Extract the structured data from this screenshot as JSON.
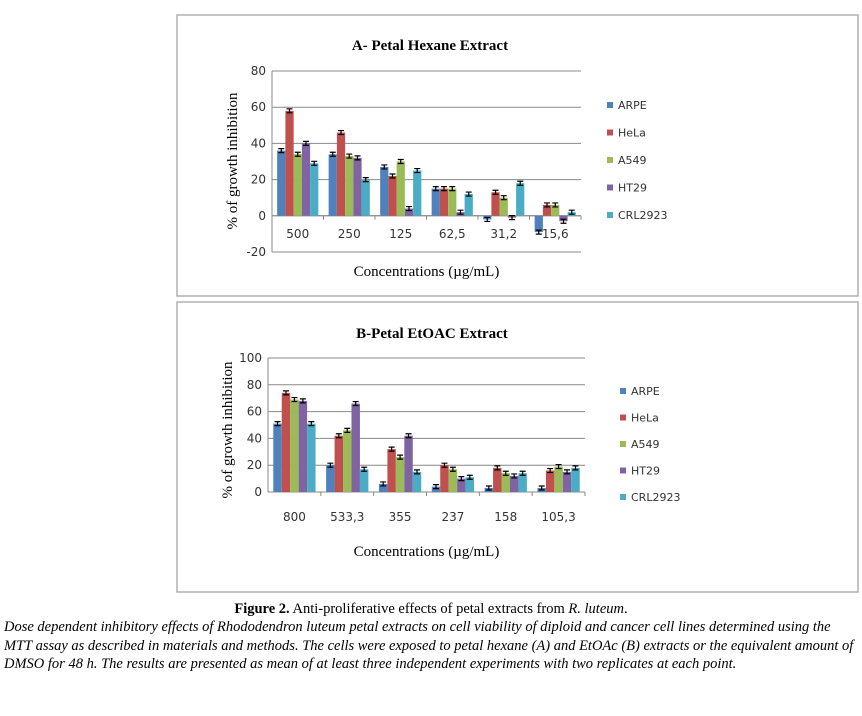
{
  "colors": {
    "ARPE": "#4f81bd",
    "HeLa": "#c0504d",
    "A549": "#9bbb59",
    "HT29": "#8064a2",
    "CRL2923": "#4bacc6"
  },
  "chart_data": [
    {
      "type": "bar",
      "title": "A- Petal Hexane Extract",
      "xlabel": "Concentrations  (µg/mL)",
      "ylabel": "% of growth inhibition",
      "ylim": [
        -20,
        80
      ],
      "yticks": [
        -20,
        0,
        20,
        40,
        60,
        80
      ],
      "grid": true,
      "legend": "right",
      "categories": [
        "500",
        "250",
        "125",
        "62,5",
        "31,2",
        "15,6"
      ],
      "series": [
        {
          "name": "ARPE",
          "values": [
            36,
            34,
            27,
            15,
            -2,
            -9
          ]
        },
        {
          "name": "HeLa",
          "values": [
            58,
            46,
            22,
            15,
            13,
            6
          ]
        },
        {
          "name": "A549",
          "values": [
            34,
            33,
            30,
            15,
            10,
            6
          ]
        },
        {
          "name": "HT29",
          "values": [
            40,
            32,
            4,
            2,
            -1,
            -3
          ]
        },
        {
          "name": "CRL2923",
          "values": [
            29,
            20,
            25,
            12,
            18,
            2
          ]
        }
      ]
    },
    {
      "type": "bar",
      "title": "B-Petal EtOAC Extract",
      "xlabel": "Concentrations  (µg/mL)",
      "ylabel": "% of growth inhibition",
      "ylim": [
        0,
        100
      ],
      "yticks": [
        0,
        20,
        40,
        60,
        80,
        100
      ],
      "grid": true,
      "legend": "right",
      "categories": [
        "800",
        "533,3",
        "355",
        "237",
        "158",
        "105,3"
      ],
      "series": [
        {
          "name": "ARPE",
          "values": [
            51,
            20,
            6,
            4,
            3,
            3
          ]
        },
        {
          "name": "HeLa",
          "values": [
            74,
            42,
            32,
            20,
            18,
            16
          ]
        },
        {
          "name": "A549",
          "values": [
            69,
            46,
            26,
            17,
            14,
            19
          ]
        },
        {
          "name": "HT29",
          "values": [
            68,
            66,
            42,
            10,
            12,
            15
          ]
        },
        {
          "name": "CRL2923",
          "values": [
            51,
            17,
            15,
            11,
            14,
            18
          ]
        }
      ]
    }
  ],
  "caption": {
    "label": "Figure 2.",
    "title_text": " Anti-proliferative effects of petal extracts from ",
    "species": "R. luteum",
    "end": ".",
    "body": "Dose dependent inhibitory effects of Rhododendron luteum petal extracts on cell viability of diploid and cancer cell lines determined using the MTT assay as described in materials and methods. The cells were exposed to petal hexane (A) and EtOAc (B) extracts or the equivalent amount of DMSO for 48 h. The results are presented as mean of at least three independent experiments with two replicates at each point."
  }
}
